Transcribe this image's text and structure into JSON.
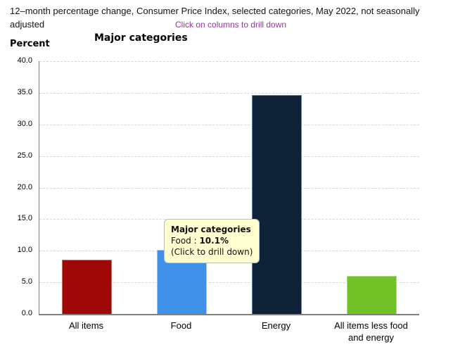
{
  "header": {
    "title": "12–month percentage change, Consumer Price Index, selected categories, May 2022, not seasonally adjusted",
    "instruction": "Click on columns to drill down",
    "instruction_color": "#993399"
  },
  "chart_data": {
    "type": "bar",
    "title": "Major categories",
    "ylabel": "Percent",
    "xlabel": "",
    "categories": [
      "All items",
      "Food",
      "Energy",
      "All items less food and energy"
    ],
    "values": [
      8.6,
      10.1,
      34.6,
      6.0
    ],
    "ylim": [
      0,
      40
    ],
    "ytick_step": 5,
    "ytick_labels": [
      "0.0",
      "5.0",
      "10.0",
      "15.0",
      "20.0",
      "25.0",
      "30.0",
      "35.0",
      "40.0"
    ],
    "grid": "horizontal-dashed",
    "legend": "none",
    "bar_colors": [
      {
        "fill": "#a00808",
        "edge": "#c4756b"
      },
      {
        "fill": "#4190e8",
        "edge": "#a3c8f3"
      },
      {
        "fill": "#0f2237",
        "edge": "#68839b"
      },
      {
        "fill": "#71c226",
        "edge": "#b0dc80"
      }
    ]
  },
  "tooltip": {
    "title": "Major categories",
    "series_label": "Food",
    "separator": " : ",
    "value": "10.1%",
    "hint": "(Click to drill down)",
    "background": "#ffffd2",
    "border_color": "#a9c0d8"
  }
}
